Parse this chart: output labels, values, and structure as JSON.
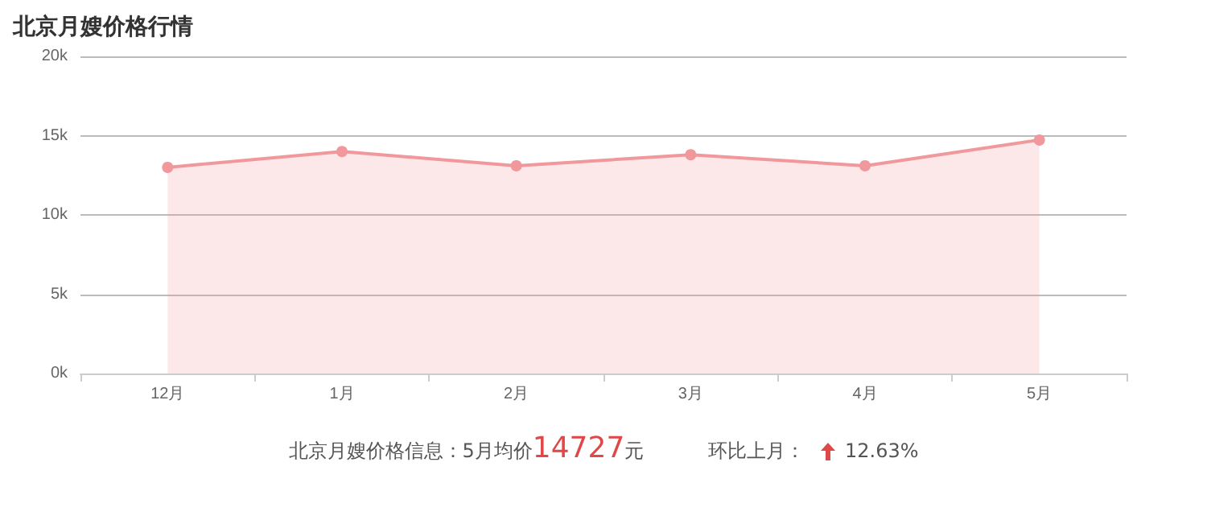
{
  "chart_data": {
    "type": "area",
    "title": "北京月嫂价格行情",
    "categories": [
      "12月",
      "1月",
      "2月",
      "3月",
      "4月",
      "5月"
    ],
    "series": [
      {
        "color": "#f0989c",
        "values": [
          13000,
          14000,
          13100,
          13800,
          13100,
          14727
        ]
      }
    ],
    "ylim": [
      0,
      20000
    ],
    "yticks": [
      {
        "value": 0,
        "label": "0k"
      },
      {
        "value": 5000,
        "label": "5k"
      },
      {
        "value": 10000,
        "label": "10k"
      },
      {
        "value": 15000,
        "label": "15k"
      },
      {
        "value": 20000,
        "label": "20k"
      }
    ],
    "grid": "y",
    "marker": "circle",
    "line_style": "solid",
    "annotations": [
      "北京月嫂价格信息：5月均价14727元",
      "环比上月： 12.63%"
    ]
  }
}
